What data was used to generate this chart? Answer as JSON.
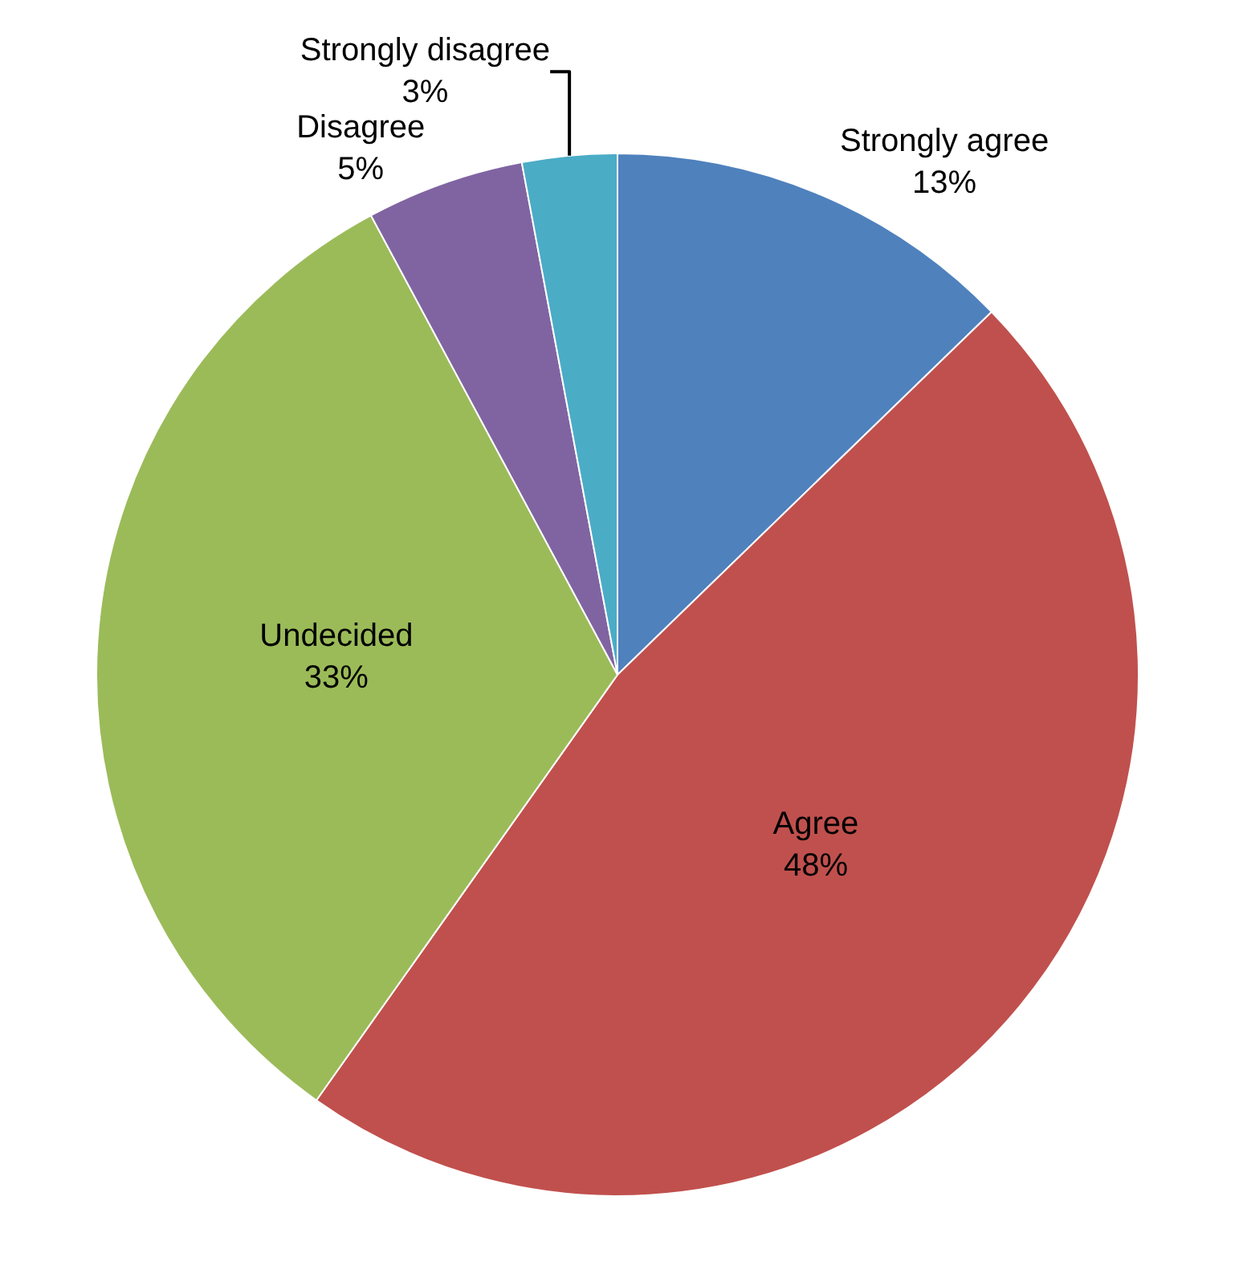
{
  "chart_data": {
    "type": "pie",
    "categories": [
      "Strongly agree",
      "Agree",
      "Undecided",
      "Disagree",
      "Strongly disagree"
    ],
    "values": [
      13,
      48,
      33,
      5,
      3
    ],
    "colors": [
      "#4f81bd",
      "#c0504d",
      "#9bbb59",
      "#8064a2",
      "#4bacc6"
    ],
    "value_labels": [
      "13%",
      "48%",
      "33%",
      "5%",
      "3%"
    ],
    "legend": false
  }
}
